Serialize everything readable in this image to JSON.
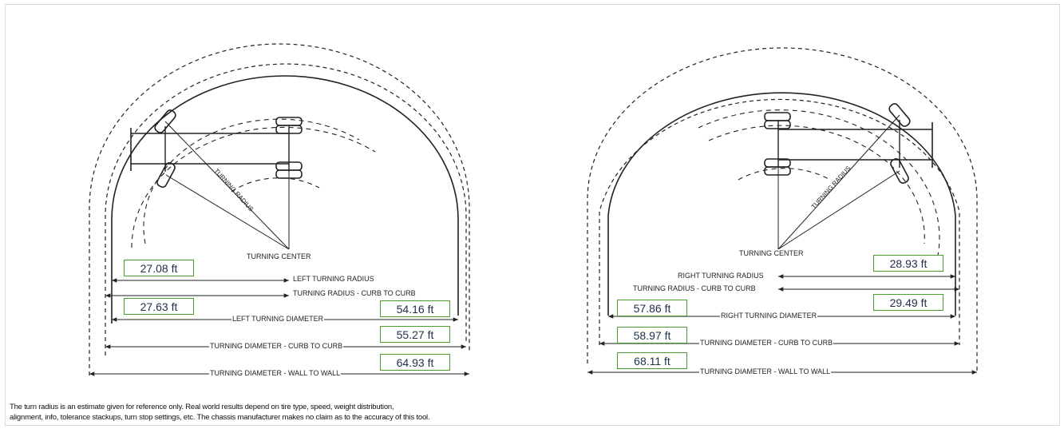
{
  "left": {
    "labels": {
      "turning_radius_rot": "TURNING RADIUS",
      "turning_center": "TURNING CENTER",
      "left_turning_radius": "LEFT TURNING RADIUS",
      "turning_radius_curb": "TURNING RADIUS - CURB TO CURB",
      "left_turning_diameter": "LEFT TURNING DIAMETER",
      "turning_diameter_curb": "TURNING DIAMETER - CURB TO CURB",
      "turning_diameter_wall": "TURNING DIAMETER - WALL TO WALL"
    },
    "values": {
      "turning_radius": "27.08 ft",
      "radius_curb": "27.63 ft",
      "turning_diameter": "54.16 ft",
      "diameter_curb": "55.27 ft",
      "diameter_wall": "64.93 ft"
    }
  },
  "right": {
    "labels": {
      "turning_radius_rot": "TURNING RADIUS",
      "turning_center": "TURNING CENTER",
      "right_turning_radius": "RIGHT TURNING RADIUS",
      "turning_radius_curb": "TURNING RADIUS - CURB TO CURB",
      "right_turning_diameter": "RIGHT TURNING DIAMETER",
      "turning_diameter_curb": "TURNING DIAMETER - CURB TO CURB",
      "turning_diameter_wall": "TURNING DIAMETER - WALL TO WALL"
    },
    "values": {
      "turning_radius": "28.93 ft",
      "radius_curb": "29.49 ft",
      "turning_diameter": "57.86 ft",
      "diameter_curb": "58.97 ft",
      "diameter_wall": "68.11 ft"
    }
  },
  "disclaimer": {
    "line1": "The turn radius is an estimate given for reference only. Real world results depend on tire type, speed, weight distribution,",
    "line2": "alignment, info, tolerance stackups, turn stop settings, etc. The chassis manufacturer makes no claim as to the accuracy of this tool."
  },
  "colors": {
    "box_border": "#4a9c2d",
    "box_text": "#1f2f4a",
    "line": "#222222"
  }
}
